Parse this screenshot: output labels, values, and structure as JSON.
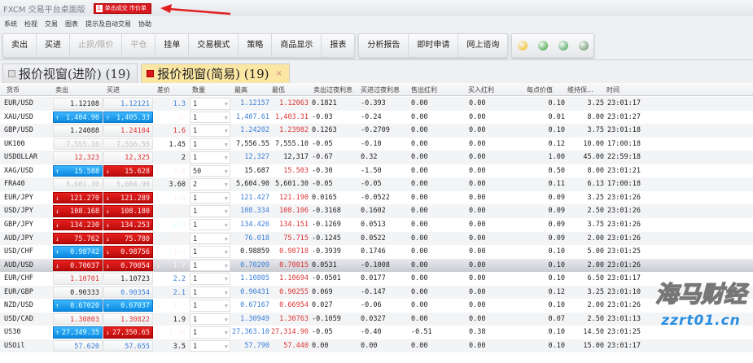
{
  "title": "FXCM 交易平台桌面版",
  "badge": {
    "num": "1",
    "label": "单击成交 市价单"
  },
  "menu": [
    "系统",
    "检视",
    "交易",
    "图表",
    "提示及自动交易",
    "协助"
  ],
  "toolbar": {
    "group1": [
      {
        "label": "卖出",
        "enabled": true
      },
      {
        "label": "买进",
        "enabled": true
      },
      {
        "label": "止损/限价",
        "enabled": false
      },
      {
        "label": "平仓",
        "enabled": false
      },
      {
        "label": "挂单",
        "enabled": true
      },
      {
        "label": "交易模式",
        "enabled": true
      },
      {
        "label": "策略",
        "enabled": true
      },
      {
        "label": "商品显示",
        "enabled": true
      },
      {
        "label": "报表",
        "enabled": true
      }
    ],
    "group2": [
      {
        "label": "分析报告"
      },
      {
        "label": "即时申请"
      },
      {
        "label": "网上谘询"
      }
    ],
    "icons": [
      "alarm-clock-icon",
      "refresh-icon",
      "clock-history-icon",
      "network-icon"
    ]
  },
  "tabs": [
    {
      "label": "报价视窗(进阶) (19)",
      "active": false
    },
    {
      "label": "报价视窗(简易) (19)",
      "active": true,
      "close": "×"
    }
  ],
  "columns": [
    "货币",
    "卖出",
    "买进",
    "差价",
    "数量",
    "最高",
    "最低",
    "卖出过夜利息",
    "买进过夜利息",
    "售出红利",
    "买入红利",
    "每点价值",
    "维持保...",
    "时间"
  ],
  "colors": {
    "up": "#1a9cf0",
    "down": "#d81414",
    "accent_tab": "#fbe7a3"
  },
  "rows": [
    {
      "cur": "EUR/USD",
      "sell": "1.12108",
      "sellS": "b",
      "buy": "1.12121",
      "buyS": "bl",
      "spread": "1.3",
      "spreadS": "bl",
      "qty": "1",
      "high": "1.12157",
      "highC": "bl",
      "low": "1.12063",
      "lowC": "r",
      "sSwap": "0.1821",
      "bSwap": "-0.393",
      "sDiv": "0.00",
      "bDiv": "0.00",
      "pv": "0.10",
      "margin": "3.25",
      "time": "23:01:17"
    },
    {
      "cur": "XAU/USD",
      "sell": "1,404.96",
      "sellS": "up",
      "buy": "1,405.33",
      "buyS": "up",
      "spread": "37",
      "spreadS": "down",
      "qty": "1",
      "high": "1,407.61",
      "highC": "bl",
      "low": "1,403.31",
      "lowC": "r",
      "sSwap": "-0.03",
      "bSwap": "-0.24",
      "sDiv": "0.00",
      "bDiv": "0.00",
      "pv": "0.01",
      "margin": "8.00",
      "time": "23:01:27"
    },
    {
      "cur": "GBP/USD",
      "sell": "1.24088",
      "sellS": "b",
      "buy": "1.24104",
      "buyS": "r",
      "spread": "1.6",
      "spreadS": "r",
      "qty": "1",
      "high": "1.24202",
      "highC": "bl",
      "low": "1.23982",
      "lowC": "r",
      "sSwap": "0.1263",
      "bSwap": "-0.2709",
      "sDiv": "0.00",
      "bDiv": "0.00",
      "pv": "0.10",
      "margin": "3.75",
      "time": "23:01:18"
    },
    {
      "cur": "UK100",
      "sell": "7,555.10",
      "sellS": "g",
      "buy": "7,556.55",
      "buyS": "g",
      "spread": "1.45",
      "spreadS": "b",
      "qty": "1",
      "high": "7,556.55",
      "highC": "b",
      "low": "7,555.10",
      "lowC": "b",
      "sSwap": "-0.05",
      "bSwap": "-0.10",
      "sDiv": "0.00",
      "bDiv": "0.00",
      "pv": "0.12",
      "margin": "10.00",
      "time": "17:00:18"
    },
    {
      "cur": "USDOLLAR",
      "sell": "12,323",
      "sellS": "r",
      "buy": "12,325",
      "buyS": "r",
      "spread": "2",
      "spreadS": "b",
      "qty": "1",
      "high": "12,327",
      "highC": "bl",
      "low": "12,317",
      "lowC": "b",
      "sSwap": "-0.67",
      "bSwap": "0.32",
      "sDiv": "0.00",
      "bDiv": "0.00",
      "pv": "1.00",
      "margin": "45.00",
      "time": "22:59:18"
    },
    {
      "cur": "XAG/USD",
      "sell": "15.588",
      "sellS": "up",
      "buy": "15.628",
      "buyS": "down",
      "spread": "4.0",
      "spreadS": "down",
      "qty": "50",
      "high": "15.687",
      "highC": "b",
      "low": "15.503",
      "lowC": "r",
      "sSwap": "-0.30",
      "bSwap": "-1.50",
      "sDiv": "0.00",
      "bDiv": "0.00",
      "pv": "0.50",
      "margin": "8.00",
      "time": "23:01:21"
    },
    {
      "cur": "FRA40",
      "sell": "5,601.30",
      "sellS": "g",
      "buy": "5,604.90",
      "buyS": "g",
      "spread": "3.60",
      "spreadS": "b",
      "qty": "2",
      "high": "5,604.90",
      "highC": "b",
      "low": "5,601.30",
      "lowC": "b",
      "sSwap": "-0.05",
      "bSwap": "-0.05",
      "sDiv": "0.00",
      "bDiv": "0.00",
      "pv": "0.11",
      "margin": "6.13",
      "time": "17:00:18"
    },
    {
      "cur": "EUR/JPY",
      "sell": "121.270",
      "sellS": "down",
      "buy": "121.289",
      "buyS": "down",
      "spread": "1.9",
      "spreadS": "down",
      "qty": "1",
      "high": "121.427",
      "highC": "bl",
      "low": "121.190",
      "lowC": "r",
      "sSwap": "0.0165",
      "bSwap": "-0.0522",
      "sDiv": "0.00",
      "bDiv": "0.00",
      "pv": "0.09",
      "margin": "3.25",
      "time": "23:01:26"
    },
    {
      "cur": "USD/JPY",
      "sell": "108.168",
      "sellS": "down",
      "buy": "108.180",
      "buyS": "down",
      "spread": "1.2",
      "spreadS": "down",
      "qty": "1",
      "high": "108.334",
      "highC": "bl",
      "low": "108.106",
      "lowC": "r",
      "sSwap": "-0.3168",
      "bSwap": "0.1602",
      "sDiv": "0.00",
      "bDiv": "0.00",
      "pv": "0.09",
      "margin": "2.50",
      "time": "23:01:26"
    },
    {
      "cur": "GBP/JPY",
      "sell": "134.230",
      "sellS": "down",
      "buy": "134.253",
      "buyS": "down",
      "spread": "2.3",
      "spreadS": "up",
      "qty": "1",
      "high": "134.426",
      "highC": "bl",
      "low": "134.151",
      "lowC": "r",
      "sSwap": "-0.1269",
      "bSwap": "0.0513",
      "sDiv": "0.00",
      "bDiv": "0.00",
      "pv": "0.09",
      "margin": "3.75",
      "time": "23:01:26"
    },
    {
      "cur": "AUD/JPY",
      "sell": "75.762",
      "sellS": "down",
      "buy": "75.780",
      "buyS": "down",
      "spread": "1.8",
      "spreadS": "down",
      "qty": "1",
      "high": "76.018",
      "highC": "bl",
      "low": "75.715",
      "lowC": "r",
      "sSwap": "-0.1245",
      "bSwap": "0.0522",
      "sDiv": "0.00",
      "bDiv": "0.00",
      "pv": "0.09",
      "margin": "2.00",
      "time": "23:01:26"
    },
    {
      "cur": "USD/CHF",
      "sell": "0.98742",
      "sellS": "up",
      "buy": "0.98756",
      "buyS": "down",
      "spread": "1.4",
      "spreadS": "down",
      "qty": "1",
      "high": "0.98859",
      "highC": "b",
      "low": "0.98718",
      "lowC": "r",
      "sSwap": "-0.3939",
      "bSwap": "0.1746",
      "sDiv": "0.00",
      "bDiv": "0.00",
      "pv": "0.10",
      "margin": "5.00",
      "time": "23:01:25"
    },
    {
      "cur": "AUD/USD",
      "sell": "0.70037",
      "sellS": "down",
      "buy": "0.70054",
      "buyS": "down",
      "spread": "1.7",
      "spreadS": "down",
      "qty": "1",
      "high": "0.70209",
      "highC": "bl",
      "low": "0.70015",
      "lowC": "r",
      "sSwap": "0.0531",
      "bSwap": "-0.1008",
      "sDiv": "0.00",
      "bDiv": "0.00",
      "pv": "0.10",
      "margin": "2.00",
      "time": "23:01:26",
      "selected": true
    },
    {
      "cur": "EUR/CHF",
      "sell": "1.10701",
      "sellS": "r",
      "buy": "1.10723",
      "buyS": "b",
      "spread": "2.2",
      "spreadS": "bl",
      "qty": "1",
      "high": "1.10805",
      "highC": "bl",
      "low": "1.10694",
      "lowC": "r",
      "sSwap": "-0.0501",
      "bSwap": "0.0177",
      "sDiv": "0.00",
      "bDiv": "0.00",
      "pv": "0.10",
      "margin": "6.50",
      "time": "23:01:17"
    },
    {
      "cur": "EUR/GBP",
      "sell": "0.90333",
      "sellS": "b",
      "buy": "0.90354",
      "buyS": "bl",
      "spread": "2.1",
      "spreadS": "bl",
      "qty": "1",
      "high": "0.90431",
      "highC": "bl",
      "low": "0.90255",
      "lowC": "r",
      "sSwap": "0.069",
      "bSwap": "-0.147",
      "sDiv": "0.00",
      "bDiv": "0.00",
      "pv": "0.12",
      "margin": "3.25",
      "time": "23:01:10"
    },
    {
      "cur": "NZD/USD",
      "sell": "0.67020",
      "sellS": "up",
      "buy": "0.67037",
      "buyS": "up",
      "spread": "1.7",
      "spreadS": "down",
      "qty": "1",
      "high": "0.67167",
      "highC": "bl",
      "low": "0.66954",
      "lowC": "r",
      "sSwap": "0.027",
      "bSwap": "-0.06",
      "sDiv": "0.00",
      "bDiv": "0.00",
      "pv": "0.10",
      "margin": "2.00",
      "time": "23:01:26"
    },
    {
      "cur": "USD/CAD",
      "sell": "1.30803",
      "sellS": "r",
      "buy": "1.30822",
      "buyS": "r",
      "spread": "1.9",
      "spreadS": "b",
      "qty": "1",
      "high": "1.30949",
      "highC": "bl",
      "low": "1.30763",
      "lowC": "r",
      "sSwap": "-0.1059",
      "bSwap": "0.0327",
      "sDiv": "0.00",
      "bDiv": "0.00",
      "pv": "0.07",
      "margin": "2.50",
      "time": "23:01:13"
    },
    {
      "cur": "US30",
      "sell": "27,349.35",
      "sellS": "up",
      "buy": "27,350.65",
      "buyS": "down",
      "spread": "1.30",
      "spreadS": "down",
      "qty": "1",
      "high": "27,363.10",
      "highC": "bl",
      "low": "27,314.90",
      "lowC": "r",
      "sSwap": "-0.05",
      "bSwap": "-0.40",
      "sDiv": "-0.51",
      "bDiv": "0.38",
      "pv": "0.10",
      "margin": "14.50",
      "time": "23:01:25"
    },
    {
      "cur": "USOil",
      "sell": "57.620",
      "sellS": "bl",
      "buy": "57.655",
      "buyS": "bl",
      "spread": "3.5",
      "spreadS": "b",
      "qty": "1",
      "high": "57.790",
      "highC": "bl",
      "low": "57.440",
      "lowC": "r",
      "sSwap": "0.00",
      "bSwap": "0.00",
      "sDiv": "0.00",
      "bDiv": "0.00",
      "pv": "0.10",
      "margin": "15.00",
      "time": "23:01:17"
    }
  ],
  "watermark": {
    "line1": "海马财经",
    "line2": "zzrt01.cn"
  }
}
